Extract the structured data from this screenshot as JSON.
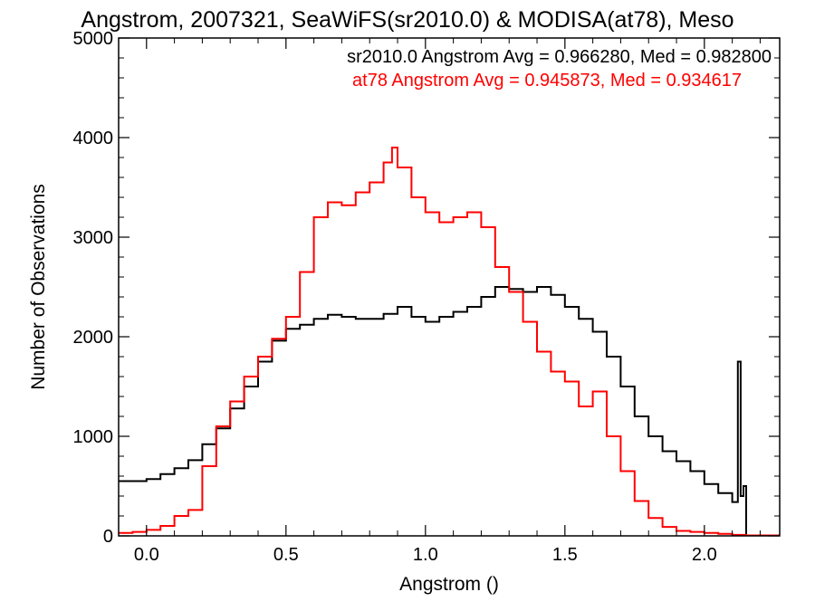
{
  "chart_data": {
    "type": "line",
    "style": "histogram-step",
    "title": "Angstrom, 2007321, SeaWiFS(sr2010.0) & MODISA(at78), Meso",
    "xlabel": "Angstrom ()",
    "ylabel": "Number of Observations",
    "xlim": [
      -0.1,
      2.27
    ],
    "ylim": [
      0,
      5000
    ],
    "grid": false,
    "x_ticks": [
      {
        "value": 0.0,
        "label": "0.0"
      },
      {
        "value": 0.5,
        "label": "0.5"
      },
      {
        "value": 1.0,
        "label": "1.0"
      },
      {
        "value": 1.5,
        "label": "1.5"
      },
      {
        "value": 2.0,
        "label": "2.0"
      }
    ],
    "y_ticks": [
      {
        "value": 0,
        "label": "0"
      },
      {
        "value": 1000,
        "label": "1000"
      },
      {
        "value": 2000,
        "label": "2000"
      },
      {
        "value": 3000,
        "label": "3000"
      },
      {
        "value": 4000,
        "label": "4000"
      },
      {
        "value": 5000,
        "label": "5000"
      }
    ],
    "annotations": [
      {
        "text": "sr2010.0 Angstrom Avg = 0.966280, Med = 0.982800",
        "color": "#000000"
      },
      {
        "text": "at78 Angstrom Avg = 0.945873, Med = 0.934617",
        "color": "#ff0000"
      }
    ],
    "series": [
      {
        "color": "#000000",
        "x": [
          -0.1,
          -0.05,
          0.0,
          0.05,
          0.1,
          0.15,
          0.2,
          0.25,
          0.3,
          0.35,
          0.4,
          0.45,
          0.5,
          0.55,
          0.6,
          0.65,
          0.7,
          0.75,
          0.8,
          0.85,
          0.9,
          0.95,
          1.0,
          1.05,
          1.1,
          1.15,
          1.2,
          1.25,
          1.3,
          1.35,
          1.4,
          1.45,
          1.5,
          1.55,
          1.6,
          1.65,
          1.7,
          1.75,
          1.8,
          1.85,
          1.9,
          1.95,
          2.0,
          2.05,
          2.1,
          2.12,
          2.13,
          2.14,
          2.15
        ],
        "y": [
          550,
          550,
          570,
          620,
          680,
          760,
          920,
          1080,
          1280,
          1500,
          1750,
          1960,
          2080,
          2120,
          2180,
          2220,
          2200,
          2180,
          2180,
          2230,
          2300,
          2200,
          2150,
          2200,
          2250,
          2300,
          2400,
          2500,
          2480,
          2450,
          2500,
          2420,
          2300,
          2180,
          2050,
          1800,
          1500,
          1200,
          1000,
          850,
          750,
          650,
          520,
          430,
          340,
          1750,
          400,
          500,
          0
        ]
      },
      {
        "color": "#ff0000",
        "x": [
          -0.1,
          -0.05,
          0.0,
          0.05,
          0.1,
          0.15,
          0.2,
          0.25,
          0.3,
          0.35,
          0.4,
          0.45,
          0.5,
          0.55,
          0.6,
          0.65,
          0.7,
          0.75,
          0.8,
          0.85,
          0.88,
          0.9,
          0.95,
          1.0,
          1.05,
          1.1,
          1.15,
          1.2,
          1.25,
          1.3,
          1.35,
          1.4,
          1.45,
          1.5,
          1.55,
          1.6,
          1.65,
          1.7,
          1.75,
          1.8,
          1.85,
          1.9,
          1.95,
          2.0,
          2.05,
          2.1,
          2.15,
          2.2,
          2.27
        ],
        "y": [
          30,
          40,
          60,
          100,
          200,
          260,
          700,
          1100,
          1350,
          1600,
          1800,
          1980,
          2200,
          2650,
          3200,
          3350,
          3320,
          3450,
          3550,
          3750,
          3900,
          3700,
          3400,
          3250,
          3150,
          3200,
          3250,
          3100,
          2700,
          2450,
          2150,
          1850,
          1650,
          1550,
          1300,
          1450,
          1000,
          650,
          350,
          180,
          90,
          50,
          40,
          30,
          20,
          10,
          5,
          5,
          5
        ]
      }
    ]
  }
}
